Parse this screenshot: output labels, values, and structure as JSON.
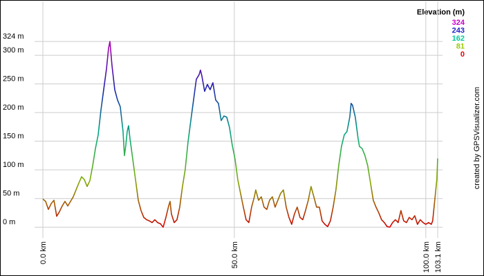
{
  "chart_data": {
    "type": "line",
    "legend_title": "Elevation (m)",
    "color_scale": [
      {
        "value": 324,
        "color": "#cc00cc"
      },
      {
        "value": 243,
        "color": "#2222cc"
      },
      {
        "value": 162,
        "color": "#00cc99"
      },
      {
        "value": 81,
        "color": "#99cc00"
      },
      {
        "value": 0,
        "color": "#ee0000"
      }
    ],
    "credit": "created by GPSVisualizer.com",
    "xlim": [
      0,
      103.1
    ],
    "ylim": [
      -19,
      394
    ],
    "xticks": [
      {
        "value": 0,
        "label": "0.0 km"
      },
      {
        "value": 50,
        "label": "50.0 km"
      },
      {
        "value": 100,
        "label": "100.0 km"
      },
      {
        "value": 103.1,
        "label": "103.1 km"
      }
    ],
    "yticks": [
      {
        "value": 0,
        "label": "0 m"
      },
      {
        "value": 50,
        "label": "50 m"
      },
      {
        "value": 100,
        "label": "100 m"
      },
      {
        "value": 150,
        "label": "150 m"
      },
      {
        "value": 200,
        "label": "200 m"
      },
      {
        "value": 250,
        "label": "250 m"
      },
      {
        "value": 300,
        "label": "300 m"
      },
      {
        "value": 324,
        "label": "324 m"
      }
    ],
    "grid": true,
    "x": [
      0,
      0.72,
      1.44,
      2.17,
      2.89,
      3.61,
      4.33,
      5.05,
      5.78,
      6.5,
      7.22,
      7.94,
      8.66,
      9.39,
      10.11,
      10.83,
      11.55,
      12.27,
      13.0,
      13.72,
      14.44,
      15.16,
      15.88,
      16.61,
      17.15,
      17.51,
      18.05,
      18.77,
      19.49,
      20.22,
      20.94,
      21.3,
      21.66,
      22.02,
      22.38,
      22.74,
      23.47,
      24.19,
      24.91,
      25.63,
      26.35,
      27.08,
      27.8,
      28.52,
      29.24,
      29.96,
      30.69,
      31.41,
      32.13,
      32.85,
      33.21,
      33.57,
      34.3,
      35.02,
      35.74,
      36.46,
      37.18,
      37.91,
      38.63,
      39.35,
      40.07,
      40.79,
      41.15,
      41.52,
      42.24,
      42.96,
      43.68,
      44.4,
      45.13,
      45.85,
      46.57,
      47.29,
      48.01,
      48.74,
      49.46,
      50.18,
      50.9,
      51.62,
      52.35,
      53.07,
      53.79,
      54.51,
      55.23,
      55.59,
      56.32,
      57.04,
      57.76,
      58.48,
      59.2,
      59.93,
      60.65,
      61.37,
      62.09,
      62.81,
      63.54,
      64.26,
      64.98,
      65.7,
      66.42,
      67.15,
      67.87,
      68.59,
      69.31,
      70.03,
      70.76,
      71.48,
      72.2,
      72.92,
      73.64,
      74.37,
      75.09,
      75.81,
      76.53,
      77.25,
      77.98,
      78.7,
      79.42,
      80.14,
      80.5,
      80.86,
      81.59,
      82.31,
      82.67,
      83.39,
      84.11,
      84.84,
      85.56,
      86.28,
      87.0,
      87.72,
      88.45,
      89.17,
      89.89,
      90.61,
      91.33,
      92.06,
      92.78,
      93.5,
      94.22,
      94.94,
      95.67,
      96.39,
      97.11,
      97.83,
      98.55,
      99.28,
      100.0,
      100.72,
      101.44,
      101.8,
      102.52,
      102.88,
      103.1
    ],
    "series": [
      {
        "values": [
          49,
          45,
          31,
          41,
          47,
          19,
          27,
          37,
          45,
          37,
          45,
          53,
          65,
          77,
          88,
          83,
          71,
          81,
          107,
          137,
          161,
          204,
          240,
          276,
          312,
          324,
          282,
          240,
          222,
          210,
          167,
          125,
          143,
          167,
          177,
          155,
          119,
          83,
          47,
          29,
          17,
          13,
          11,
          8,
          13,
          8,
          6,
          0,
          17,
          37,
          45,
          23,
          8,
          13,
          35,
          71,
          101,
          149,
          186,
          222,
          258,
          266,
          274,
          264,
          237,
          249,
          240,
          252,
          222,
          216,
          186,
          194,
          192,
          174,
          143,
          119,
          83,
          59,
          35,
          13,
          8,
          35,
          53,
          65,
          47,
          53,
          35,
          31,
          47,
          53,
          35,
          47,
          59,
          65,
          35,
          17,
          5,
          23,
          35,
          17,
          13,
          29,
          47,
          71,
          53,
          35,
          35,
          11,
          5,
          1,
          11,
          35,
          65,
          107,
          141,
          161,
          167,
          192,
          216,
          213,
          192,
          155,
          141,
          137,
          125,
          107,
          77,
          47,
          35,
          25,
          13,
          8,
          1,
          0,
          8,
          13,
          8,
          29,
          11,
          8,
          17,
          13,
          20,
          5,
          13,
          8,
          5,
          8,
          5,
          11,
          59,
          83,
          120
        ]
      }
    ]
  }
}
